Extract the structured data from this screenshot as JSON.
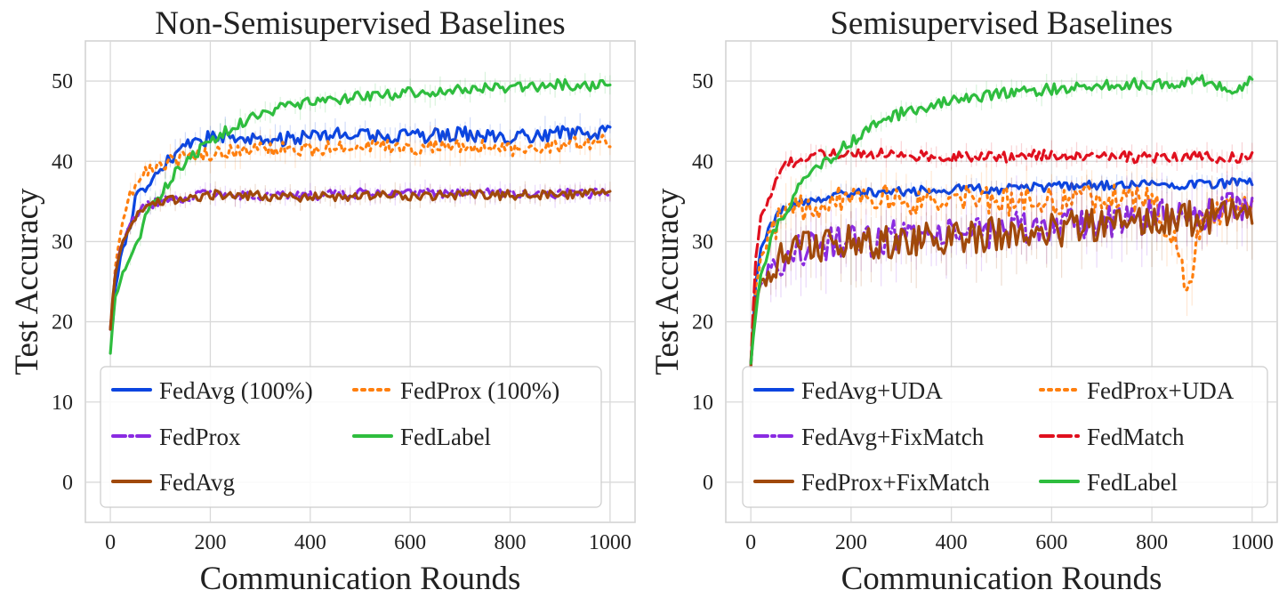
{
  "chart_data": [
    {
      "type": "line",
      "title": "Non-Semisupervised Baselines",
      "xlabel": "Communication Rounds",
      "ylabel": "Test Accuracy",
      "xlim": [
        -50,
        1050
      ],
      "ylim": [
        -5,
        55
      ],
      "xticks": [
        0,
        200,
        400,
        600,
        800,
        1000
      ],
      "yticks": [
        0,
        10,
        20,
        30,
        40,
        50
      ],
      "grid": true,
      "legend": {
        "location": "lower-left",
        "columns": 2
      },
      "series": [
        {
          "name": "FedAvg (100%)",
          "color": "#0b45e0",
          "dash": "solid",
          "x": [
            0,
            5,
            10,
            20,
            30,
            50,
            70,
            100,
            130,
            160,
            200,
            250,
            300,
            400,
            500,
            600,
            700,
            800,
            900,
            1000
          ],
          "y": [
            19,
            20,
            24,
            28,
            30,
            35,
            37,
            39,
            41,
            42,
            43,
            43.3,
            42.5,
            43,
            43.5,
            43,
            43.5,
            43,
            43.5,
            43.5
          ],
          "noise": 0.9
        },
        {
          "name": "FedProx (100%)",
          "color": "#ff7f0e",
          "dash": "dotted",
          "x": [
            0,
            5,
            10,
            20,
            30,
            50,
            70,
            100,
            150,
            200,
            300,
            400,
            500,
            600,
            700,
            800,
            900,
            1000
          ],
          "y": [
            19,
            22,
            27,
            31,
            34,
            37.5,
            39,
            39.5,
            40.5,
            41,
            41.5,
            41.5,
            42,
            41.5,
            42,
            41.5,
            42,
            42.5
          ],
          "noise": 0.9
        },
        {
          "name": "FedProx",
          "color": "#8a2be2",
          "dash": "dashdot",
          "x": [
            0,
            5,
            10,
            20,
            30,
            50,
            70,
            100,
            200,
            300,
            400,
            500,
            600,
            700,
            800,
            900,
            1000
          ],
          "y": [
            19,
            23,
            26,
            29,
            31,
            33,
            34.5,
            35,
            36,
            35.7,
            35.7,
            36,
            36,
            36,
            36,
            36,
            36
          ],
          "noise": 0.6
        },
        {
          "name": "FedLabel",
          "color": "#2ebd3e",
          "dash": "solid",
          "x": [
            0,
            5,
            10,
            20,
            30,
            50,
            70,
            100,
            130,
            160,
            200,
            250,
            300,
            400,
            500,
            600,
            700,
            800,
            900,
            1000
          ],
          "y": [
            16,
            20,
            23,
            25,
            27,
            29,
            33,
            36,
            38.5,
            40.5,
            42.5,
            44.5,
            46,
            47.5,
            48,
            48.5,
            49,
            49.3,
            49.5,
            49.5
          ],
          "noise": 0.7
        },
        {
          "name": "FedAvg",
          "color": "#a0490b",
          "dash": "solid",
          "x": [
            0,
            5,
            10,
            20,
            30,
            50,
            70,
            100,
            200,
            300,
            400,
            500,
            600,
            700,
            800,
            900,
            1000
          ],
          "y": [
            19,
            23,
            26,
            29,
            31,
            33,
            34.5,
            35,
            35.8,
            35.7,
            35.5,
            35.7,
            35.7,
            35.8,
            35.8,
            35.8,
            36
          ],
          "noise": 0.6
        }
      ]
    },
    {
      "type": "line",
      "title": "Semisupervised Baselines",
      "xlabel": "Communication Rounds",
      "ylabel": "Test Accuracy",
      "xlim": [
        -50,
        1050
      ],
      "ylim": [
        -5,
        55
      ],
      "xticks": [
        0,
        200,
        400,
        600,
        800,
        1000
      ],
      "yticks": [
        0,
        10,
        20,
        30,
        40,
        50
      ],
      "grid": true,
      "legend": {
        "location": "lower-left",
        "columns": 2
      },
      "series": [
        {
          "name": "FedAvg+UDA",
          "color": "#0b45e0",
          "dash": "solid",
          "x": [
            0,
            5,
            10,
            20,
            40,
            60,
            100,
            150,
            200,
            300,
            400,
            500,
            600,
            700,
            800,
            900,
            1000
          ],
          "y": [
            15,
            20,
            25,
            29,
            32,
            34,
            35,
            35.5,
            36,
            36.3,
            36.5,
            36.5,
            36.8,
            37,
            37,
            37.2,
            37.3
          ],
          "noise": 0.6
        },
        {
          "name": "FedProx+UDA",
          "color": "#ff7f0e",
          "dash": "dotted",
          "x": [
            0,
            5,
            10,
            20,
            40,
            60,
            100,
            150,
            200,
            300,
            400,
            500,
            600,
            700,
            800,
            850,
            870,
            900,
            1000
          ],
          "y": [
            15,
            20,
            24,
            28,
            31,
            33,
            34,
            35,
            36,
            35,
            35.5,
            35,
            35,
            35.5,
            35,
            30,
            23,
            33,
            35
          ],
          "noise": 1.8
        },
        {
          "name": "FedAvg+FixMatch",
          "color": "#8a2be2",
          "dash": "dashdot",
          "x": [
            0,
            5,
            10,
            20,
            40,
            60,
            100,
            150,
            200,
            300,
            400,
            500,
            600,
            700,
            800,
            900,
            1000
          ],
          "y": [
            15,
            19,
            22,
            25,
            27,
            28,
            29,
            29.5,
            30,
            30.5,
            31,
            31.5,
            32,
            32.5,
            33,
            33.5,
            34.5
          ],
          "noise": 2.2
        },
        {
          "name": "FedMatch",
          "color": "#e0101e",
          "dash": "dashed",
          "x": [
            0,
            5,
            10,
            20,
            40,
            60,
            100,
            150,
            200,
            300,
            400,
            500,
            600,
            700,
            800,
            900,
            1000
          ],
          "y": [
            15,
            22,
            28,
            33,
            36,
            39,
            40.5,
            41,
            41,
            40.8,
            40.5,
            40.5,
            40.8,
            40.5,
            40.5,
            40.5,
            40.5
          ],
          "noise": 0.7
        },
        {
          "name": "FedProx+FixMatch",
          "color": "#a0490b",
          "dash": "solid",
          "x": [
            0,
            5,
            10,
            20,
            40,
            60,
            100,
            150,
            200,
            300,
            400,
            500,
            600,
            700,
            800,
            900,
            1000
          ],
          "y": [
            15,
            19,
            22,
            25,
            27,
            28,
            29,
            29.5,
            30,
            30,
            30.5,
            31,
            31.5,
            32,
            32.5,
            33,
            34
          ],
          "noise": 2.2
        },
        {
          "name": "FedLabel",
          "color": "#2ebd3e",
          "dash": "solid",
          "x": [
            0,
            5,
            10,
            20,
            40,
            60,
            100,
            150,
            200,
            250,
            300,
            400,
            500,
            600,
            700,
            800,
            900,
            950,
            960,
            1000
          ],
          "y": [
            15,
            18,
            21,
            26,
            30,
            33,
            37,
            40,
            42.5,
            44.5,
            46,
            47.5,
            48.5,
            49,
            49.5,
            49.7,
            50,
            49,
            48,
            50.5
          ],
          "noise": 0.7
        }
      ]
    }
  ]
}
